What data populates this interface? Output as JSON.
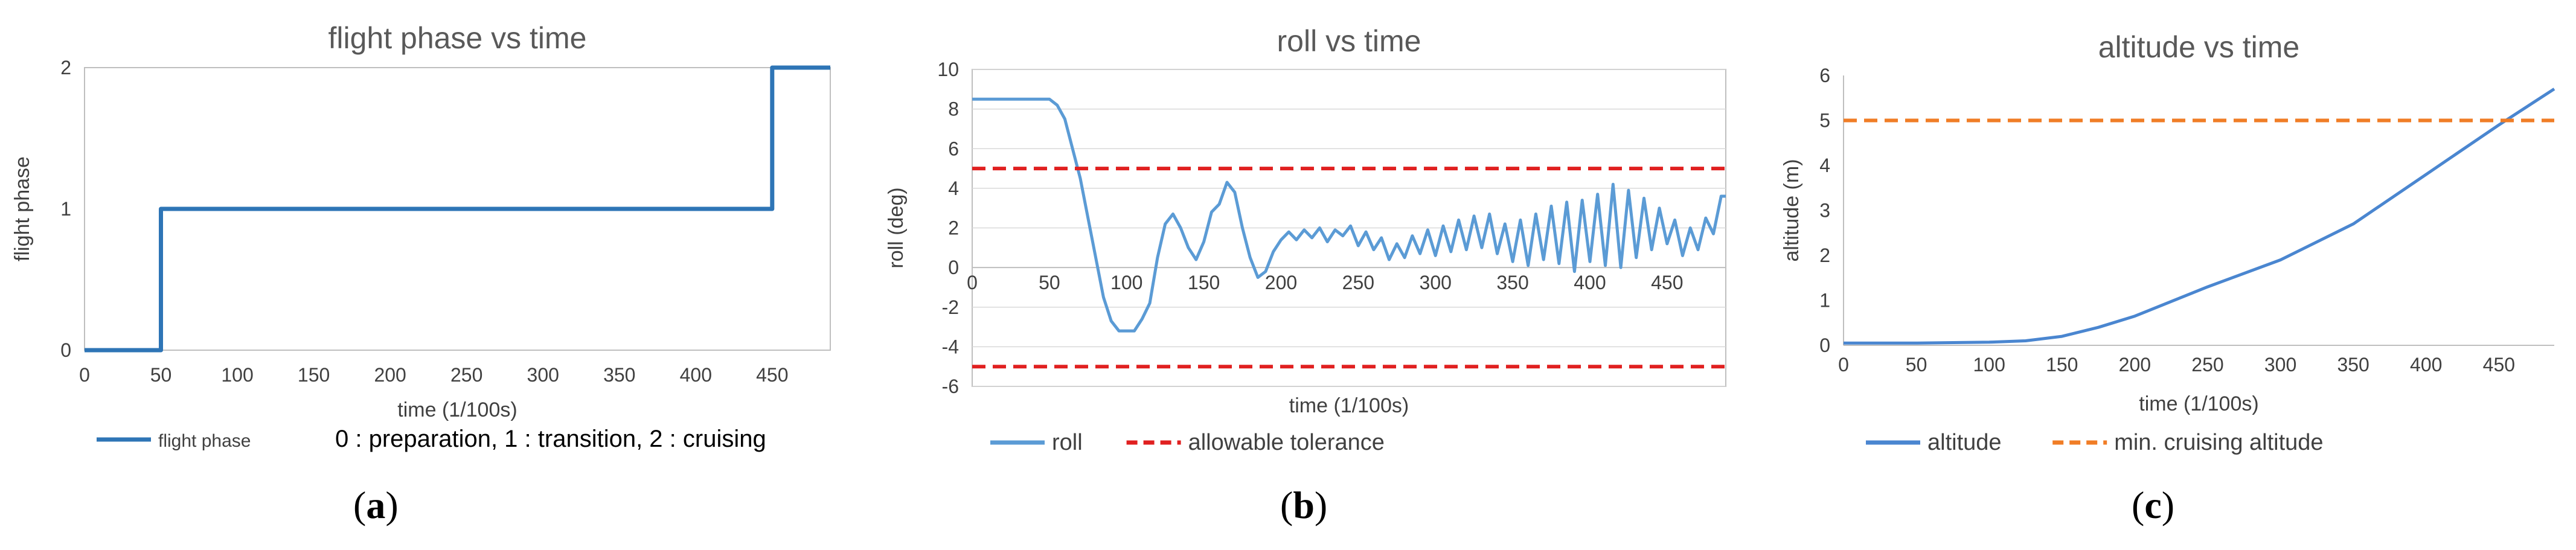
{
  "chart_data": [
    {
      "type": "line",
      "title": "flight phase vs time",
      "xlabel": "time (1/100s)",
      "ylabel": "flight phase",
      "xlim": [
        0,
        488
      ],
      "ylim": [
        0,
        2
      ],
      "xticks": [
        0,
        50,
        100,
        150,
        200,
        250,
        300,
        350,
        400,
        450
      ],
      "yticks": [
        0,
        1,
        2
      ],
      "grid": "none",
      "legend_position": "bottom-left",
      "legend_note": "0 : preparation, 1 : transition, 2 : cruising",
      "series": [
        {
          "name": "flight phase",
          "color": "#2e75b6",
          "x": [
            0,
            50,
            50,
            450,
            450,
            488
          ],
          "y": [
            0,
            0,
            1,
            1,
            2,
            2
          ]
        }
      ]
    },
    {
      "type": "line",
      "title": "roll vs time",
      "xlabel": "time (1/100s)",
      "ylabel": "roll  (deg)",
      "xlim": [
        0,
        488
      ],
      "ylim": [
        -6,
        10
      ],
      "xticks": [
        0,
        50,
        100,
        150,
        200,
        250,
        300,
        350,
        400,
        450
      ],
      "yticks": [
        -6,
        -4,
        -2,
        0,
        2,
        4,
        6,
        8,
        10
      ],
      "grid": "horizontal",
      "legend_position": "bottom-left",
      "series": [
        {
          "name": "roll",
          "color": "#5b9bd5",
          "x": [
            0,
            10,
            20,
            30,
            40,
            50,
            55,
            60,
            65,
            70,
            75,
            80,
            85,
            90,
            95,
            100,
            105,
            110,
            115,
            120,
            125,
            130,
            135,
            140,
            145,
            150,
            155,
            160,
            165,
            170,
            175,
            180,
            185,
            190,
            195,
            200,
            205,
            210,
            215,
            220,
            225,
            230,
            235,
            240,
            245,
            250,
            255,
            260,
            265,
            270,
            275,
            280,
            285,
            290,
            295,
            300,
            305,
            310,
            315,
            320,
            325,
            330,
            335,
            340,
            345,
            350,
            355,
            360,
            365,
            370,
            375,
            380,
            385,
            390,
            395,
            400,
            405,
            410,
            415,
            420,
            425,
            430,
            435,
            440,
            445,
            450,
            455,
            460,
            465,
            470,
            475,
            480,
            485,
            488
          ],
          "y": [
            8.5,
            8.5,
            8.5,
            8.5,
            8.5,
            8.5,
            8.2,
            7.5,
            6.0,
            4.5,
            2.5,
            0.5,
            -1.5,
            -2.7,
            -3.2,
            -3.2,
            -3.2,
            -2.6,
            -1.8,
            0.5,
            2.2,
            2.7,
            2.0,
            1.0,
            0.4,
            1.3,
            2.8,
            3.2,
            4.3,
            3.8,
            2.0,
            0.5,
            -0.5,
            -0.2,
            0.8,
            1.4,
            1.8,
            1.4,
            1.9,
            1.5,
            2.0,
            1.3,
            1.9,
            1.6,
            2.1,
            1.1,
            1.8,
            0.9,
            1.5,
            0.4,
            1.2,
            0.5,
            1.6,
            0.7,
            1.9,
            0.6,
            2.1,
            0.8,
            2.4,
            0.9,
            2.6,
            1.0,
            2.7,
            0.7,
            2.2,
            0.3,
            2.4,
            0.1,
            2.7,
            0.4,
            3.1,
            0.2,
            3.3,
            -0.2,
            3.4,
            0.3,
            3.7,
            0.1,
            4.2,
            0.0,
            3.9,
            0.5,
            3.5,
            0.9,
            3.0,
            1.2,
            2.4,
            0.6,
            2.0,
            0.9,
            2.5,
            1.7,
            3.6,
            3.6
          ]
        },
        {
          "name": "allowable tolerance",
          "color": "#e02020",
          "dashed": true,
          "x": [
            0,
            488
          ],
          "y": [
            5,
            5
          ]
        },
        {
          "name": "",
          "color": "#e02020",
          "dashed": true,
          "x": [
            0,
            488
          ],
          "y": [
            -5,
            -5
          ]
        }
      ]
    },
    {
      "type": "line",
      "title": "altitude vs time",
      "xlabel": "time (1/100s)",
      "ylabel": "altitude (m)",
      "xlim": [
        0,
        488
      ],
      "ylim": [
        0,
        6
      ],
      "xticks": [
        0,
        50,
        100,
        150,
        200,
        250,
        300,
        350,
        400,
        450
      ],
      "yticks": [
        0,
        1,
        2,
        3,
        4,
        5,
        6
      ],
      "grid": "none",
      "legend_position": "bottom-left",
      "series": [
        {
          "name": "altitude",
          "color": "#4a86d0",
          "x": [
            0,
            50,
            100,
            125,
            150,
            175,
            200,
            250,
            300,
            350,
            400,
            450,
            488
          ],
          "y": [
            0.05,
            0.05,
            0.07,
            0.1,
            0.2,
            0.4,
            0.65,
            1.3,
            1.9,
            2.7,
            3.8,
            4.9,
            5.7
          ]
        },
        {
          "name": "min. cruising altitude",
          "color": "#f07d26",
          "dashed": true,
          "x": [
            0,
            488
          ],
          "y": [
            5,
            5
          ]
        }
      ]
    }
  ],
  "captions": [
    "(a)",
    "(b)",
    "(c)"
  ],
  "caption_letters": [
    "a",
    "b",
    "c"
  ]
}
